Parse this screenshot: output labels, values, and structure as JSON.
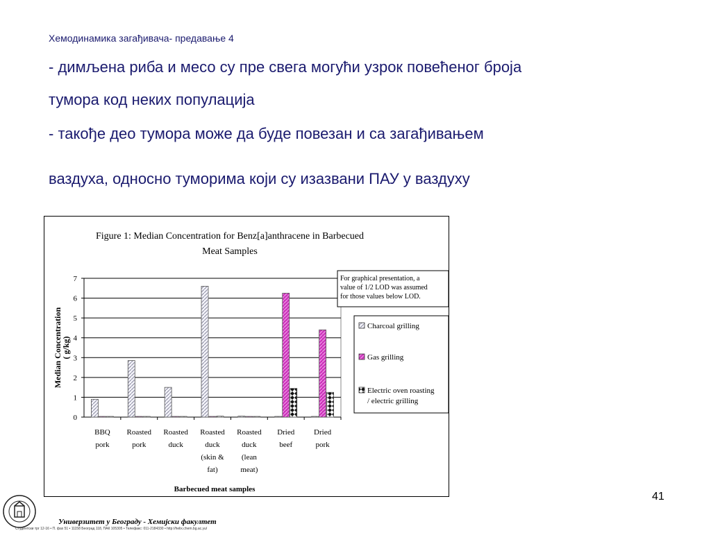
{
  "slide": {
    "header": "Хемодинамика загађивача- предавање 4",
    "lines": [
      "- димљена риба и месо су пре свега могући узрок повећеног броја",
      "тумора код неких популација",
      "- такође део тумора може да буде повезан и са загађивањем",
      "ваздуха, односно туморима који су изазвани ПАУ у ваздуху"
    ],
    "page_number": "41",
    "footer_title": "Универзитет у Београду - Хемијски факултет",
    "footer_address": "Студентски трг 12-16 • П. фах 51 • 11158 Београд 118, ПАК 105305 • Телефакс: 011-2184330 • http://helix.chem.bg.ac.yu/"
  },
  "chart_data": {
    "type": "bar",
    "title_lines": [
      "Figure 1:  Median Concentration for Benz[a]anthracene in Barbecued",
      "Meat Samples"
    ],
    "ylabel_lines": [
      "Median Concentration",
      "( g/kg)"
    ],
    "xlabel": "Barbecued meat samples",
    "ylim": [
      0,
      7
    ],
    "yticks": [
      "0",
      "1",
      "2",
      "3",
      "4",
      "5",
      "6",
      "7"
    ],
    "grid": true,
    "categories": [
      [
        "BBQ",
        "pork"
      ],
      [
        "Roasted",
        "pork"
      ],
      [
        "Roasted",
        "duck"
      ],
      [
        "Roasted",
        "duck",
        "(skin &",
        "fat)"
      ],
      [
        "Roasted",
        "duck",
        "(lean",
        "meat)"
      ],
      [
        "Dried",
        "beef"
      ],
      [
        "Dried",
        "pork"
      ]
    ],
    "series": [
      {
        "name": "Charcoal grilling",
        "color": "#e8e8f4",
        "pattern": "diag",
        "values": [
          0.9,
          2.85,
          1.5,
          6.6,
          0.05,
          0,
          0
        ]
      },
      {
        "name": "Gas grilling",
        "color": "#d040c0",
        "pattern": "diag-magenta",
        "values": [
          0,
          0,
          0,
          0,
          0,
          6.25,
          4.4
        ]
      },
      {
        "name": "Electric oven roasting / electric grilling",
        "color": "#1a7070",
        "pattern": "checker",
        "values": [
          0,
          0,
          0,
          0.05,
          0,
          1.45,
          1.25
        ]
      }
    ],
    "legend_position": "right",
    "legend_labels": [
      [
        "Charcoal grilling"
      ],
      [
        "Gas grilling"
      ],
      [
        "Electric oven roasting",
        "/ electric grilling"
      ]
    ],
    "note_lines": [
      "For graphical presentation, a",
      "value of 1/2 LOD was assumed",
      "for those values below LOD."
    ]
  }
}
